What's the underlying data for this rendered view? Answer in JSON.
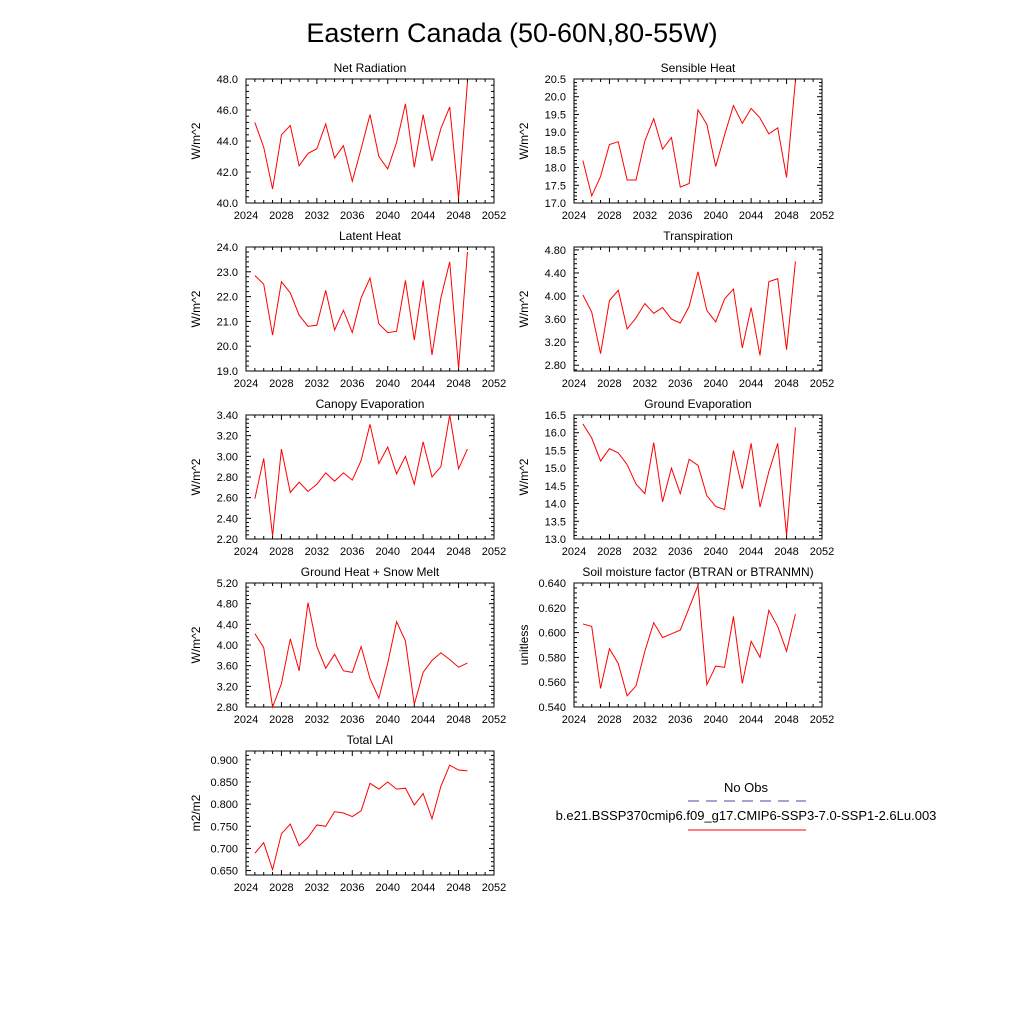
{
  "figure": {
    "title": "Eastern Canada (50-60N,80-55W)"
  },
  "legend": {
    "obs_label": "No Obs",
    "obs_color": "#4a4aa8",
    "model_label": "b.e21.BSSP370cmip6.f09_g17.CMIP6-SSP3-7.0-SSP1-2.6Lu.003",
    "model_color": "#ff0000"
  },
  "chart_data": [
    {
      "type": "line",
      "title": "Net Radiation",
      "ylabel": "W/m^2",
      "xlim": [
        2024,
        2052
      ],
      "x_ticks": [
        2024,
        2028,
        2032,
        2036,
        2040,
        2044,
        2048,
        2052
      ],
      "x_tick_labels": [
        "2024",
        "2028",
        "2032",
        "2036",
        "2040",
        "2044",
        "2048",
        "2052"
      ],
      "ylim": [
        40.0,
        48.0
      ],
      "y_ticks": [
        40,
        42,
        44,
        46,
        48
      ],
      "y_tick_labels": [
        "40.0",
        "42.0",
        "44.0",
        "46.0",
        "48.0"
      ],
      "series": [
        {
          "color": "#ff0000",
          "x": [
            2025,
            2026,
            2027,
            2028,
            2029,
            2030,
            2031,
            2032,
            2033,
            2034,
            2035,
            2036,
            2037,
            2038,
            2039,
            2040,
            2041,
            2042,
            2043,
            2044,
            2045,
            2046,
            2047,
            2048,
            2049
          ],
          "values": [
            45.2,
            43.6,
            40.9,
            44.4,
            45.0,
            42.4,
            43.2,
            43.5,
            45.1,
            42.9,
            43.7,
            41.4,
            43.5,
            45.7,
            43.0,
            42.2,
            43.9,
            46.4,
            42.3,
            45.7,
            42.7,
            44.8,
            46.2,
            40.3,
            47.8
          ]
        }
      ]
    },
    {
      "type": "line",
      "title": "Sensible Heat",
      "ylabel": "W/m^2",
      "xlim": [
        2024,
        2052
      ],
      "x_ticks": [
        2024,
        2028,
        2032,
        2036,
        2040,
        2044,
        2048,
        2052
      ],
      "x_tick_labels": [
        "2024",
        "2028",
        "2032",
        "2036",
        "2040",
        "2044",
        "2048",
        "2052"
      ],
      "ylim": [
        17.0,
        20.5
      ],
      "y_ticks": [
        17.0,
        17.5,
        18.0,
        18.5,
        19.0,
        19.5,
        20.0,
        20.5
      ],
      "y_tick_labels": [
        "17.0",
        "17.5",
        "18.0",
        "18.5",
        "19.0",
        "19.5",
        "20.0",
        "20.5"
      ],
      "series": [
        {
          "color": "#ff0000",
          "x": [
            2025,
            2026,
            2027,
            2028,
            2029,
            2030,
            2031,
            2032,
            2033,
            2034,
            2035,
            2036,
            2037,
            2038,
            2039,
            2040,
            2041,
            2042,
            2043,
            2044,
            2045,
            2046,
            2047,
            2048,
            2049
          ],
          "values": [
            18.2,
            17.2,
            17.75,
            18.65,
            18.73,
            17.65,
            17.65,
            18.75,
            19.38,
            18.52,
            18.85,
            17.45,
            17.55,
            19.63,
            19.22,
            18.03,
            18.92,
            19.75,
            19.25,
            19.67,
            19.4,
            18.95,
            19.12,
            17.72,
            20.45
          ]
        }
      ]
    },
    {
      "type": "line",
      "title": "Latent Heat",
      "ylabel": "W/m^2",
      "xlim": [
        2024,
        2052
      ],
      "x_ticks": [
        2024,
        2028,
        2032,
        2036,
        2040,
        2044,
        2048,
        2052
      ],
      "x_tick_labels": [
        "2024",
        "2028",
        "2032",
        "2036",
        "2040",
        "2044",
        "2048",
        "2052"
      ],
      "ylim": [
        19.0,
        24.0
      ],
      "y_ticks": [
        19,
        20,
        21,
        22,
        23,
        24
      ],
      "y_tick_labels": [
        "19.0",
        "20.0",
        "21.0",
        "22.0",
        "23.0",
        "24.0"
      ],
      "series": [
        {
          "color": "#ff0000",
          "x": [
            2025,
            2026,
            2027,
            2028,
            2029,
            2030,
            2031,
            2032,
            2033,
            2034,
            2035,
            2036,
            2037,
            2038,
            2039,
            2040,
            2041,
            2042,
            2043,
            2044,
            2045,
            2046,
            2047,
            2048,
            2049
          ],
          "values": [
            22.85,
            22.5,
            20.45,
            22.6,
            22.15,
            21.25,
            20.8,
            20.85,
            22.25,
            20.65,
            21.45,
            20.55,
            21.95,
            22.75,
            20.9,
            20.55,
            20.6,
            22.65,
            20.25,
            22.65,
            19.65,
            21.95,
            23.4,
            19.1,
            23.8
          ]
        }
      ]
    },
    {
      "type": "line",
      "title": "Transpiration",
      "ylabel": "W/m^2",
      "xlim": [
        2024,
        2052
      ],
      "x_ticks": [
        2024,
        2028,
        2032,
        2036,
        2040,
        2044,
        2048,
        2052
      ],
      "x_tick_labels": [
        "2024",
        "2028",
        "2032",
        "2036",
        "2040",
        "2044",
        "2048",
        "2052"
      ],
      "ylim": [
        2.7,
        4.85
      ],
      "y_ticks": [
        2.8,
        3.2,
        3.6,
        4.0,
        4.4,
        4.8
      ],
      "y_tick_labels": [
        "2.80",
        "3.20",
        "3.60",
        "4.00",
        "4.40",
        "4.80"
      ],
      "series": [
        {
          "color": "#ff0000",
          "x": [
            2025,
            2026,
            2027,
            2028,
            2029,
            2030,
            2031,
            2032,
            2033,
            2034,
            2035,
            2036,
            2037,
            2038,
            2039,
            2040,
            2041,
            2042,
            2043,
            2044,
            2045,
            2046,
            2047,
            2048,
            2049
          ],
          "values": [
            4.02,
            3.72,
            3.0,
            3.92,
            4.1,
            3.43,
            3.62,
            3.87,
            3.7,
            3.8,
            3.6,
            3.53,
            3.82,
            4.42,
            3.75,
            3.55,
            3.95,
            4.12,
            3.1,
            3.8,
            2.97,
            4.25,
            4.3,
            3.07,
            4.6
          ]
        }
      ]
    },
    {
      "type": "line",
      "title": "Canopy Evaporation",
      "ylabel": "W/m^2",
      "xlim": [
        2024,
        2052
      ],
      "x_ticks": [
        2024,
        2028,
        2032,
        2036,
        2040,
        2044,
        2048,
        2052
      ],
      "x_tick_labels": [
        "2024",
        "2028",
        "2032",
        "2036",
        "2040",
        "2044",
        "2048",
        "2052"
      ],
      "ylim": [
        2.2,
        3.4
      ],
      "y_ticks": [
        2.2,
        2.4,
        2.6,
        2.8,
        3.0,
        3.2,
        3.4
      ],
      "y_tick_labels": [
        "2.20",
        "2.40",
        "2.60",
        "2.80",
        "3.00",
        "3.20",
        "3.40"
      ],
      "series": [
        {
          "color": "#ff0000",
          "x": [
            2025,
            2026,
            2027,
            2028,
            2029,
            2030,
            2031,
            2032,
            2033,
            2034,
            2035,
            2036,
            2037,
            2038,
            2039,
            2040,
            2041,
            2042,
            2043,
            2044,
            2045,
            2046,
            2047,
            2048,
            2049
          ],
          "values": [
            2.59,
            2.98,
            2.23,
            3.07,
            2.65,
            2.75,
            2.66,
            2.73,
            2.84,
            2.76,
            2.84,
            2.77,
            2.96,
            3.31,
            2.93,
            3.09,
            2.83,
            3.0,
            2.73,
            3.14,
            2.8,
            2.9,
            3.4,
            2.88,
            3.07
          ]
        }
      ]
    },
    {
      "type": "line",
      "title": "Ground Evaporation",
      "ylabel": "W/m^2",
      "xlim": [
        2024,
        2052
      ],
      "x_ticks": [
        2024,
        2028,
        2032,
        2036,
        2040,
        2044,
        2048,
        2052
      ],
      "x_tick_labels": [
        "2024",
        "2028",
        "2032",
        "2036",
        "2040",
        "2044",
        "2048",
        "2052"
      ],
      "ylim": [
        13.0,
        16.5
      ],
      "y_ticks": [
        13.0,
        13.5,
        14.0,
        14.5,
        15.0,
        15.5,
        16.0,
        16.5
      ],
      "y_tick_labels": [
        "13.0",
        "13.5",
        "14.0",
        "14.5",
        "15.0",
        "15.5",
        "16.0",
        "16.5"
      ],
      "series": [
        {
          "color": "#ff0000",
          "x": [
            2025,
            2026,
            2027,
            2028,
            2029,
            2030,
            2031,
            2032,
            2033,
            2034,
            2035,
            2036,
            2037,
            2038,
            2039,
            2040,
            2041,
            2042,
            2043,
            2044,
            2045,
            2046,
            2047,
            2048,
            2049
          ],
          "values": [
            16.25,
            15.85,
            15.2,
            15.55,
            15.43,
            15.1,
            14.55,
            14.28,
            15.72,
            14.05,
            15.0,
            14.28,
            15.25,
            15.08,
            14.22,
            13.92,
            13.83,
            15.5,
            14.42,
            15.7,
            13.9,
            14.9,
            15.7,
            13.1,
            16.15
          ]
        }
      ]
    },
    {
      "type": "line",
      "title": "Ground Heat + Snow Melt",
      "ylabel": "W/m^2",
      "xlim": [
        2024,
        2052
      ],
      "x_ticks": [
        2024,
        2028,
        2032,
        2036,
        2040,
        2044,
        2048,
        2052
      ],
      "x_tick_labels": [
        "2024",
        "2028",
        "2032",
        "2036",
        "2040",
        "2044",
        "2048",
        "2052"
      ],
      "ylim": [
        2.8,
        5.2
      ],
      "y_ticks": [
        2.8,
        3.2,
        3.6,
        4.0,
        4.4,
        4.8,
        5.2
      ],
      "y_tick_labels": [
        "2.80",
        "3.20",
        "3.60",
        "4.00",
        "4.40",
        "4.80",
        "5.20"
      ],
      "series": [
        {
          "color": "#ff0000",
          "x": [
            2025,
            2026,
            2027,
            2028,
            2029,
            2030,
            2031,
            2032,
            2033,
            2034,
            2035,
            2036,
            2037,
            2038,
            2039,
            2040,
            2041,
            2042,
            2043,
            2044,
            2045,
            2046,
            2047,
            2048,
            2049
          ],
          "values": [
            4.22,
            3.95,
            2.8,
            3.25,
            4.12,
            3.5,
            4.82,
            3.97,
            3.55,
            3.82,
            3.5,
            3.47,
            3.97,
            3.35,
            2.97,
            3.65,
            4.45,
            4.08,
            2.85,
            3.47,
            3.7,
            3.85,
            3.72,
            3.57,
            3.65
          ]
        }
      ]
    },
    {
      "type": "line",
      "title": "Soil moisture factor (BTRAN or BTRANMN)",
      "ylabel": "unitless",
      "xlim": [
        2024,
        2052
      ],
      "x_ticks": [
        2024,
        2028,
        2032,
        2036,
        2040,
        2044,
        2048,
        2052
      ],
      "x_tick_labels": [
        "2024",
        "2028",
        "2032",
        "2036",
        "2040",
        "2044",
        "2048",
        "2052"
      ],
      "ylim": [
        0.54,
        0.64
      ],
      "y_ticks": [
        0.54,
        0.56,
        0.58,
        0.6,
        0.62,
        0.64
      ],
      "y_tick_labels": [
        "0.540",
        "0.560",
        "0.580",
        "0.600",
        "0.620",
        "0.640"
      ],
      "series": [
        {
          "color": "#ff0000",
          "x": [
            2025,
            2026,
            2027,
            2028,
            2029,
            2030,
            2031,
            2032,
            2033,
            2034,
            2035,
            2036,
            2037,
            2038,
            2039,
            2040,
            2041,
            2042,
            2043,
            2044,
            2045,
            2046,
            2047,
            2048,
            2049
          ],
          "values": [
            0.607,
            0.605,
            0.555,
            0.587,
            0.575,
            0.549,
            0.557,
            0.585,
            0.608,
            0.596,
            0.599,
            0.602,
            0.62,
            0.638,
            0.558,
            0.573,
            0.572,
            0.613,
            0.559,
            0.593,
            0.58,
            0.618,
            0.605,
            0.585,
            0.615
          ]
        }
      ]
    },
    {
      "type": "line",
      "title": "Total LAI",
      "ylabel": "m2/m2",
      "xlim": [
        2024,
        2052
      ],
      "x_ticks": [
        2024,
        2028,
        2032,
        2036,
        2040,
        2044,
        2048,
        2052
      ],
      "x_tick_labels": [
        "2024",
        "2028",
        "2032",
        "2036",
        "2040",
        "2044",
        "2048",
        "2052"
      ],
      "ylim": [
        0.64,
        0.92
      ],
      "y_ticks": [
        0.65,
        0.7,
        0.75,
        0.8,
        0.85,
        0.9
      ],
      "y_tick_labels": [
        "0.650",
        "0.700",
        "0.750",
        "0.800",
        "0.850",
        "0.900"
      ],
      "series": [
        {
          "color": "#ff0000",
          "x": [
            2025,
            2026,
            2027,
            2028,
            2029,
            2030,
            2031,
            2032,
            2033,
            2034,
            2035,
            2036,
            2037,
            2038,
            2039,
            2040,
            2041,
            2042,
            2043,
            2044,
            2045,
            2046,
            2047,
            2048,
            2049
          ],
          "values": [
            0.689,
            0.713,
            0.652,
            0.733,
            0.755,
            0.706,
            0.725,
            0.753,
            0.75,
            0.783,
            0.78,
            0.772,
            0.785,
            0.847,
            0.834,
            0.85,
            0.834,
            0.836,
            0.798,
            0.824,
            0.767,
            0.84,
            0.888,
            0.877,
            0.875
          ]
        }
      ]
    }
  ]
}
